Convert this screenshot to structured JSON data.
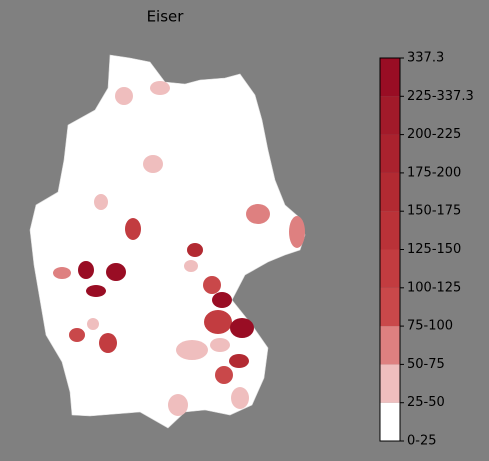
{
  "title": "Eiser",
  "legend": {
    "labels": [
      "0-25",
      "25-50",
      "50-75",
      "75-100",
      "100-125",
      "125-150",
      "150-175",
      "175-200",
      "200-225",
      "225-337.3",
      "337.3"
    ],
    "colors": [
      "#ffffff",
      "#efbebe",
      "#de8080",
      "#c9484a",
      "#c23c40",
      "#ba3238",
      "#b22a32",
      "#aa222e",
      "#a21a2a",
      "#990d24"
    ]
  }
}
